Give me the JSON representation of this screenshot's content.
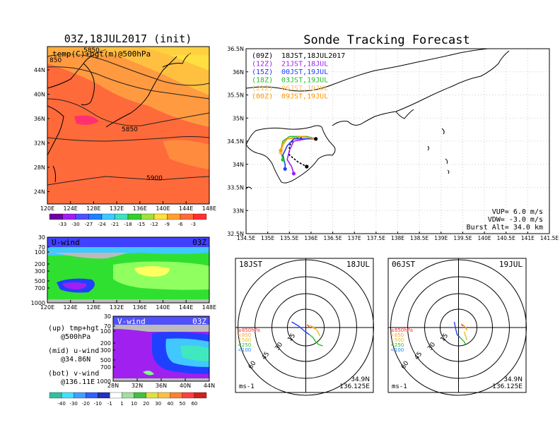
{
  "colors": {
    "purple": "#a020f0",
    "blue": "#2040ff",
    "green": "#20c020",
    "orange": "#ff9900",
    "lightorange": "#ffc060",
    "black": "#000000",
    "bg_warm": "#ff7a3a",
    "land": "#ffffff"
  },
  "panels": {
    "map500": {
      "title": "03Z,18JUL2017 (init)",
      "subtitle": "temp(C)+hgt(m)@500hPa",
      "lat_labels": [
        "44N",
        "40N",
        "36N",
        "32N",
        "28N",
        "24N"
      ],
      "lon_labels": [
        "120E",
        "124E",
        "128E",
        "132E",
        "136E",
        "140E",
        "144E",
        "148E"
      ],
      "contour_labels": [
        "5850",
        "850",
        "5850",
        "5900"
      ],
      "colorbar": [
        "-33",
        "-30",
        "-27",
        "-24",
        "-21",
        "-18",
        "-15",
        "-12",
        "-9",
        "-6",
        "-3"
      ]
    },
    "uwind": {
      "title": "U-wind",
      "time": "03Z",
      "p_labels": [
        "30",
        "70",
        "100",
        "200",
        "300",
        "500",
        "700",
        "1000"
      ],
      "lon_labels": [
        "120E",
        "124E",
        "128E",
        "132E",
        "136E",
        "140E",
        "144E",
        "148E"
      ]
    },
    "vwind": {
      "title": "V-wind",
      "time": "03Z",
      "p_labels": [
        "30",
        "70",
        "100",
        "200",
        "300",
        "500",
        "700",
        "1000"
      ],
      "lat_labels": [
        "28N",
        "32N",
        "36N",
        "40N",
        "44N"
      ],
      "colorbar": [
        "-40",
        "-30",
        "-20",
        "-10",
        "-1",
        "1",
        "10",
        "20",
        "30",
        "40",
        "50",
        "60"
      ]
    },
    "legend_text": [
      {
        "a": "(up) tmp+hgt",
        "b": "@500hPa"
      },
      {
        "a": "(mid) u-wind",
        "b": "@34.86N"
      },
      {
        "a": "(bot) v-wind",
        "b": "@136.11E"
      }
    ],
    "track": {
      "title": "Sonde Tracking Forecast",
      "lat_labels": [
        "36.5N",
        "36N",
        "35.5N",
        "35N",
        "34.5N",
        "34N",
        "33.5N",
        "33N",
        "32.5N"
      ],
      "lon_labels": [
        "134.5E",
        "135E",
        "135.5E",
        "136E",
        "136.5E",
        "137E",
        "137.5E",
        "138E",
        "138.5E",
        "139E",
        "139.5E",
        "140E",
        "140.5E",
        "141E",
        "141.5E"
      ],
      "legend": [
        {
          "tag": "(09Z)",
          "text": "18JST,18JUL2017",
          "color": "#000000"
        },
        {
          "tag": "(12Z)",
          "text": "21JST,18JUL",
          "color": "#a020f0"
        },
        {
          "tag": "(15Z)",
          "text": "00JST,19JUL",
          "color": "#2040ff"
        },
        {
          "tag": "(18Z)",
          "text": "03JST,19JUL",
          "color": "#20c020"
        },
        {
          "tag": "(21Z)",
          "text": "06JST,19JUL",
          "color": "#ffc060"
        },
        {
          "tag": "(00Z)",
          "text": "09JST,19JUL",
          "color": "#ff9900"
        }
      ],
      "params": [
        "VUP=  6.0 m/s",
        "VDW= -3.0 m/s",
        "Burst Alt= 34.0 km"
      ]
    },
    "hodo1": {
      "tl": "18JST",
      "tr": "18JUL",
      "levels": [
        "≥850hPa",
        "<850",
        "<500",
        "<250",
        "<100"
      ],
      "rings": [
        "15",
        "30",
        "45",
        "60"
      ],
      "unit": "ms-1",
      "br1": "34.9N",
      "br2": "136.125E"
    },
    "hodo2": {
      "tl": "06JST",
      "tr": "19JUL",
      "levels": [
        "≥850hPa",
        "<850",
        "<500",
        "<250",
        "<100"
      ],
      "rings": [
        "15",
        "30",
        "45",
        "60"
      ],
      "unit": "ms-1",
      "br1": "34.9N",
      "br2": "136.125E"
    }
  },
  "chart_data": [
    {
      "type": "heatmap",
      "title": "03Z,18JUL2017 (init)",
      "subtitle": "temp(C)+hgt(m)@500hPa",
      "x_range": [
        "120E",
        "148E"
      ],
      "y_range": [
        "24N",
        "46N"
      ],
      "contour_values": [
        5850,
        5900
      ],
      "colorbar": [
        -33,
        -30,
        -27,
        -24,
        -21,
        -18,
        -15,
        -12,
        -9,
        -6,
        -3
      ]
    },
    {
      "type": "heatmap",
      "title": "U-wind",
      "y_levels_hPa": [
        30,
        70,
        100,
        200,
        300,
        500,
        700,
        1000
      ],
      "x_range": [
        "120E",
        "148E"
      ]
    },
    {
      "type": "heatmap",
      "title": "V-wind",
      "y_levels_hPa": [
        30,
        70,
        100,
        200,
        300,
        500,
        700,
        1000
      ],
      "x_range": [
        "28N",
        "44N"
      ],
      "colorbar": [
        -40,
        -30,
        -20,
        -10,
        -1,
        1,
        10,
        20,
        30,
        40,
        50,
        60
      ]
    },
    {
      "type": "line",
      "title": "Sonde Tracking Forecast",
      "xlim": [
        134.5,
        141.5
      ],
      "ylim": [
        32.5,
        36.5
      ],
      "launch": {
        "lon": 136.11,
        "lat": 34.55
      },
      "series": [
        {
          "name": "(09Z)",
          "values": [
            [
              136.11,
              34.55
            ],
            [
              135.9,
              34.6
            ],
            [
              135.6,
              34.55
            ],
            [
              135.5,
              34.4
            ],
            [
              135.5,
              34.2
            ],
            [
              135.7,
              34.05
            ],
            [
              135.9,
              33.95
            ]
          ]
        },
        {
          "name": "(12Z)",
          "values": [
            [
              136.11,
              34.55
            ],
            [
              135.9,
              34.55
            ],
            [
              135.6,
              34.5
            ],
            [
              135.5,
              34.3
            ],
            [
              135.45,
              34.1
            ],
            [
              135.55,
              33.95
            ],
            [
              135.6,
              33.8
            ]
          ]
        },
        {
          "name": "(15Z)",
          "values": [
            [
              136.11,
              34.55
            ],
            [
              135.9,
              34.55
            ],
            [
              135.6,
              34.55
            ],
            [
              135.45,
              34.4
            ],
            [
              135.35,
              34.2
            ],
            [
              135.4,
              34.0
            ],
            [
              135.4,
              33.9
            ]
          ]
        },
        {
          "name": "(18Z)",
          "values": [
            [
              136.11,
              34.55
            ],
            [
              135.9,
              34.6
            ],
            [
              135.5,
              34.6
            ],
            [
              135.35,
              34.5
            ],
            [
              135.3,
              34.3
            ],
            [
              135.35,
              34.1
            ]
          ]
        },
        {
          "name": "(21Z)",
          "values": [
            [
              136.11,
              34.55
            ],
            [
              135.8,
              34.6
            ],
            [
              135.45,
              34.55
            ],
            [
              135.35,
              34.4
            ],
            [
              135.3,
              34.25
            ]
          ]
        },
        {
          "name": "(00Z)",
          "values": [
            [
              136.11,
              34.55
            ],
            [
              135.8,
              34.6
            ],
            [
              135.45,
              34.55
            ],
            [
              135.35,
              34.45
            ],
            [
              135.3,
              34.3
            ]
          ]
        }
      ]
    }
  ]
}
